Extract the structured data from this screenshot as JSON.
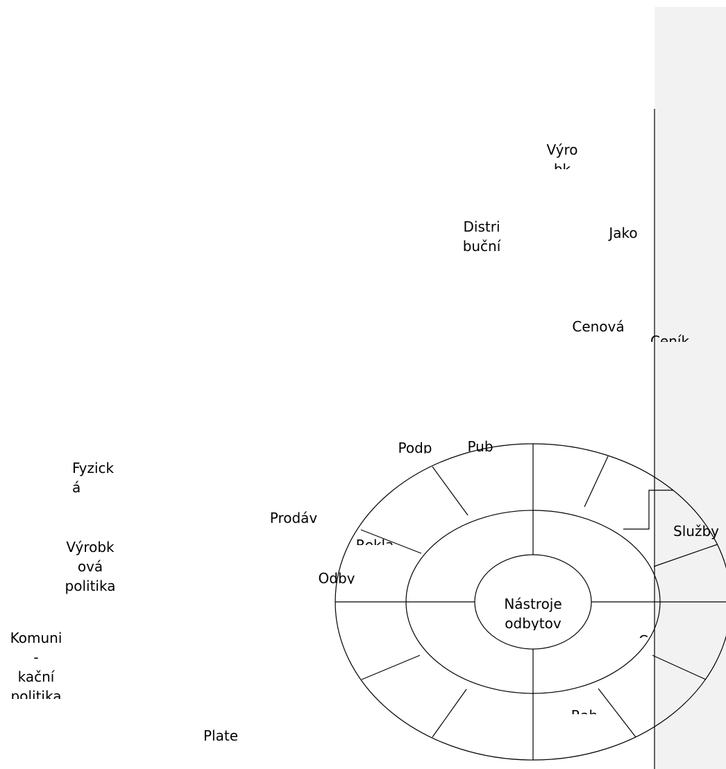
{
  "colors": {
    "background": "#ffffff",
    "side_panel": "#f2f2f2",
    "line": "#000000"
  },
  "labels": {
    "center": "Nástroje\nodbytov",
    "vyro": "Výro\nbk",
    "distri": "Distri\nbuční",
    "jako": "Jako",
    "cenova": "Cenová",
    "cenova_below": "Ceník",
    "podp": "Podp",
    "pub": "Pub",
    "fyzicka": "Fyzick\ná",
    "prodav": "Prodáv",
    "rekla": "Rekla",
    "vyrobkova": "Výrobk\nová\npolitika",
    "odby": "Odby",
    "sluzby": "Služby",
    "komunikacni": "Komuni\n-\nkační\npolitika",
    "plate": "Plate",
    "cut_right": "Ce",
    "cut_bottom": "Rab"
  }
}
